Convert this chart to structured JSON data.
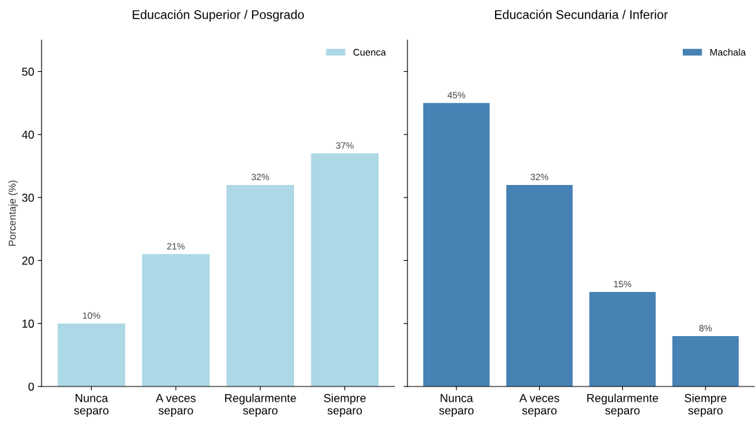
{
  "chart_data": [
    {
      "type": "bar",
      "title": "Educación Superior / Posgrado",
      "ylabel": "Porcentaje (%)",
      "categories": [
        "Nunca\nseparo",
        "A veces\nseparo",
        "Regularmente\nseparo",
        "Siempre\nseparo"
      ],
      "series": [
        {
          "name": "Cuenca",
          "color": "#add8e6",
          "values": [
            10,
            21,
            32,
            37
          ],
          "value_labels": [
            "10%",
            "21%",
            "32%",
            "37%"
          ]
        }
      ],
      "ylim": [
        0,
        55
      ],
      "yticks": [
        0,
        10,
        20,
        30,
        40,
        50
      ],
      "legend": "top right"
    },
    {
      "type": "bar",
      "title": "Educación Secundaria / Inferior",
      "categories": [
        "Nunca\nseparo",
        "A veces\nseparo",
        "Regularmente\nseparo",
        "Siempre\nseparo"
      ],
      "series": [
        {
          "name": "Machala",
          "color": "#4682b4",
          "values": [
            45,
            32,
            15,
            8
          ],
          "value_labels": [
            "45%",
            "32%",
            "15%",
            "8%"
          ]
        }
      ],
      "ylim": [
        0,
        55
      ],
      "yticks": [
        0,
        10,
        20,
        30,
        40,
        50
      ],
      "tick_labels": "x",
      "legend": "top right"
    }
  ]
}
